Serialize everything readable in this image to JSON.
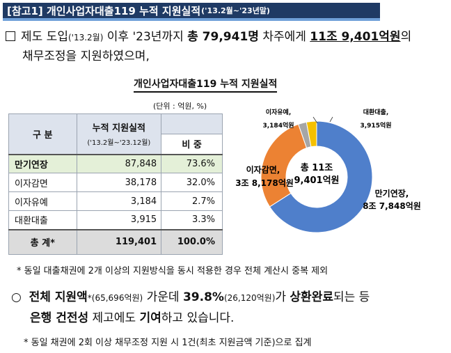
{
  "header": {
    "title": "[참고1]  개인사업자대출119  누적  지원실적",
    "period": "('13.2월~'23년말)"
  },
  "intro": {
    "p1": "제도 도입",
    "p2": "('13.2월)",
    "p3": " 이후 '23년까지 ",
    "p4": "총 79,941명",
    "p5": " 차주에게 ",
    "p6": "11조 9,401억원",
    "p7": "의",
    "line2": "채무조정을 지원하였으며,"
  },
  "chart_title": "개인사업자대출119  누적  지원실적",
  "unit": "(단위 : 억원, %)",
  "table": {
    "col_category": "구   분",
    "col_amount": "누적 지원실적",
    "col_amount_period": "('13.2월~'23.12월)",
    "col_ratio": "비  중",
    "rows": [
      {
        "label": "만기연장",
        "amount": "87,848",
        "ratio": "73.6%"
      },
      {
        "label": "이자감면",
        "amount": "38,178",
        "ratio": "32.0%"
      },
      {
        "label": "이자유예",
        "amount": "3,184",
        "ratio": "2.7%"
      },
      {
        "label": "대환대출",
        "amount": "3,915",
        "ratio": "3.3%"
      }
    ],
    "total": {
      "label": "총   계*",
      "amount": "119,401",
      "ratio": "100.0%"
    }
  },
  "note1": "* 동일 대출채권에 2개 이상의 지원방식을 동시 적용한 경우 전체 계산시 중복 제외",
  "bullet2": {
    "symbol": "○",
    "a": "전체 지원액",
    "b": "*",
    "c": "(65,696억원)",
    "d": " 가운데 ",
    "e": "39.8%",
    "f": "(26,120억원)",
    "g": "가 ",
    "h": "상환완료",
    "i": "되는 등",
    "j": "은행 건전성",
    "k": " 제고에도 ",
    "l": "기여",
    "m": "하고 있습니다."
  },
  "note2": "* 동일 채권에 2회 이상 채무조정 지원 시 1건(최초 지원금액 기준)으로 집계",
  "chart_data": {
    "type": "pie",
    "title": "개인사업자대출119 누적 지원실적",
    "center_label_1": "총 11조",
    "center_label_2": "9,401억원",
    "unit": "억원",
    "slices": [
      {
        "name": "만기연장",
        "value": 87848,
        "label_1": "만기연장,",
        "label_2": "8조 7,848억원",
        "color": "#4f7fcb"
      },
      {
        "name": "이자감면",
        "value": 38178,
        "label_1": "이자감면,",
        "label_2": "3조 8,178억원",
        "color": "#ec8233"
      },
      {
        "name": "이자유예",
        "value": 3184,
        "label_1": "이자유예,",
        "label_2": "3,184억원",
        "color": "#a6a6a6"
      },
      {
        "name": "대환대출",
        "value": 3915,
        "label_1": "대환대출,",
        "label_2": "3,915억원",
        "color": "#f5c000"
      }
    ]
  }
}
